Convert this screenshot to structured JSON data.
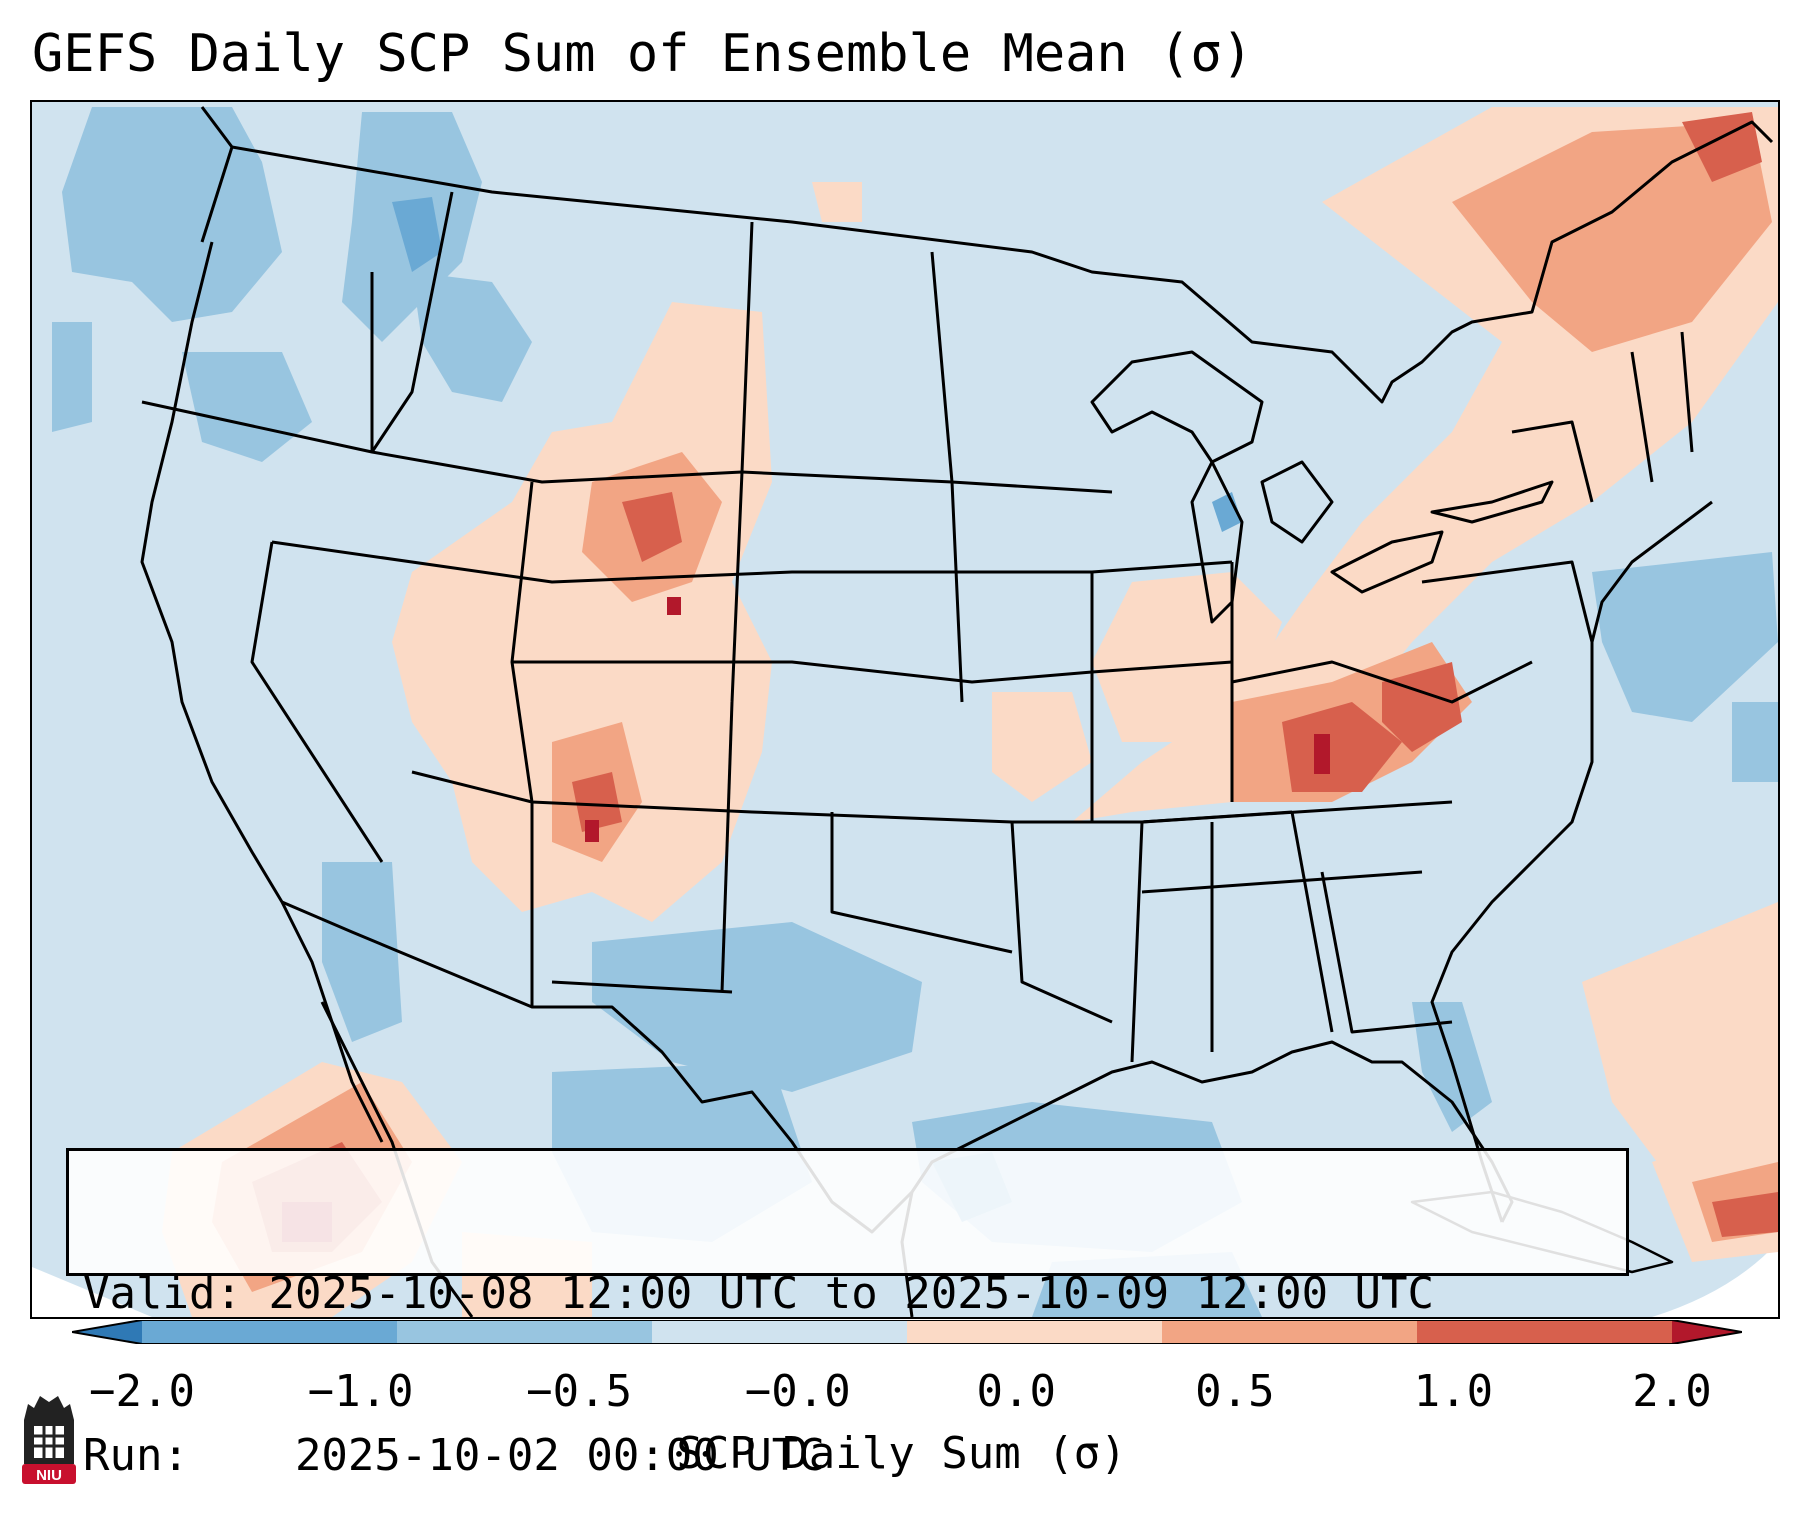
{
  "title": "GEFS Daily SCP Sum of Ensemble Mean (σ)",
  "info": {
    "valid_label": "Valid:",
    "valid_value": "2025-10-08 12:00 UTC to 2025-10-09 12:00 UTC",
    "run_label": "Run:",
    "run_value": "2025-10-02 00:00 UTC"
  },
  "colorbar": {
    "label": "SCP Daily Sum (σ)",
    "ticks": [
      "−2.0",
      "−1.0",
      "−0.5",
      "−0.0",
      "0.0",
      "0.5",
      "1.0",
      "2.0"
    ],
    "colors": [
      "#2f79b5",
      "#6aa9d4",
      "#98c5e0",
      "#d0e3ef",
      "#fbdac6",
      "#f2a584",
      "#d7604d",
      "#b2182b"
    ]
  },
  "logo": {
    "text": "NIU",
    "color": "#c8102e"
  },
  "map": {
    "background_color": "#d0e3ef",
    "outside_color": "#ffffff",
    "line_color": "#000000"
  }
}
